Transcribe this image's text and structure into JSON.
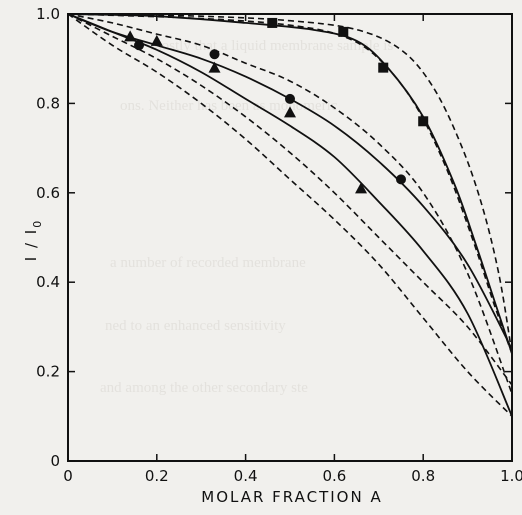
{
  "chart_data": {
    "type": "line",
    "xlabel": "MOLAR FRACTION A",
    "ylabel": "I / I",
    "ylabel_subscript": "0",
    "xlim": [
      0,
      1
    ],
    "ylim": [
      0,
      1
    ],
    "x_ticks": [
      "0",
      "0.2",
      "0.4",
      "0.6",
      "0.8",
      "1.0"
    ],
    "y_ticks": [
      "0",
      "0.2",
      "0.4",
      "0.6",
      "0.8",
      "1.0"
    ],
    "x_tick_values": [
      0,
      0.2,
      0.4,
      0.6,
      0.8,
      1.0
    ],
    "y_tick_values": [
      0,
      0.2,
      0.4,
      0.6,
      0.8,
      1.0
    ],
    "grid": false,
    "legend": "none",
    "series": [
      {
        "marker": "square",
        "points": [
          [
            0.46,
            0.98
          ],
          [
            0.62,
            0.96
          ],
          [
            0.71,
            0.88
          ],
          [
            0.8,
            0.76
          ]
        ],
        "solid_curve": [
          [
            0,
            1
          ],
          [
            0.2,
            0.995
          ],
          [
            0.4,
            0.98
          ],
          [
            0.55,
            0.965
          ],
          [
            0.65,
            0.94
          ],
          [
            0.72,
            0.88
          ],
          [
            0.8,
            0.77
          ],
          [
            0.87,
            0.62
          ],
          [
            0.92,
            0.48
          ],
          [
            0.96,
            0.36
          ],
          [
            1.0,
            0.24
          ]
        ],
        "dashed_curves": [
          [
            [
              0,
              1
            ],
            [
              0.3,
              0.995
            ],
            [
              0.5,
              0.985
            ],
            [
              0.65,
              0.965
            ],
            [
              0.75,
              0.92
            ],
            [
              0.82,
              0.84
            ],
            [
              0.88,
              0.72
            ],
            [
              0.93,
              0.58
            ],
            [
              0.97,
              0.42
            ],
            [
              1.0,
              0.24
            ]
          ],
          [
            [
              0,
              1
            ],
            [
              0.3,
              0.99
            ],
            [
              0.5,
              0.975
            ],
            [
              0.62,
              0.95
            ],
            [
              0.7,
              0.9
            ],
            [
              0.78,
              0.8
            ],
            [
              0.85,
              0.66
            ],
            [
              0.91,
              0.5
            ],
            [
              0.96,
              0.35
            ],
            [
              1.0,
              0.24
            ]
          ]
        ]
      },
      {
        "marker": "circle",
        "points": [
          [
            0.16,
            0.93
          ],
          [
            0.33,
            0.91
          ],
          [
            0.5,
            0.81
          ],
          [
            0.75,
            0.63
          ]
        ],
        "solid_curve": [
          [
            0,
            1
          ],
          [
            0.1,
            0.96
          ],
          [
            0.2,
            0.93
          ],
          [
            0.3,
            0.9
          ],
          [
            0.4,
            0.86
          ],
          [
            0.5,
            0.81
          ],
          [
            0.6,
            0.75
          ],
          [
            0.7,
            0.67
          ],
          [
            0.8,
            0.57
          ],
          [
            0.9,
            0.44
          ],
          [
            1.0,
            0.25
          ]
        ],
        "dashed_curves": [
          [
            [
              0,
              1
            ],
            [
              0.1,
              0.98
            ],
            [
              0.2,
              0.955
            ],
            [
              0.3,
              0.93
            ],
            [
              0.4,
              0.89
            ],
            [
              0.5,
              0.85
            ],
            [
              0.6,
              0.79
            ],
            [
              0.7,
              0.71
            ],
            [
              0.8,
              0.6
            ],
            [
              0.9,
              0.42
            ],
            [
              1.0,
              0.15
            ]
          ],
          [
            [
              0,
              1
            ],
            [
              0.1,
              0.95
            ],
            [
              0.2,
              0.9
            ],
            [
              0.3,
              0.84
            ],
            [
              0.4,
              0.77
            ],
            [
              0.5,
              0.69
            ],
            [
              0.6,
              0.6
            ],
            [
              0.7,
              0.5
            ],
            [
              0.8,
              0.4
            ],
            [
              0.9,
              0.3
            ],
            [
              1.0,
              0.17
            ]
          ]
        ]
      },
      {
        "marker": "triangle",
        "points": [
          [
            0.14,
            0.95
          ],
          [
            0.2,
            0.94
          ],
          [
            0.33,
            0.88
          ],
          [
            0.5,
            0.78
          ],
          [
            0.66,
            0.61
          ]
        ],
        "solid_curve": [
          [
            0,
            1
          ],
          [
            0.1,
            0.96
          ],
          [
            0.2,
            0.92
          ],
          [
            0.3,
            0.87
          ],
          [
            0.4,
            0.81
          ],
          [
            0.5,
            0.75
          ],
          [
            0.6,
            0.68
          ],
          [
            0.7,
            0.58
          ],
          [
            0.8,
            0.47
          ],
          [
            0.9,
            0.33
          ],
          [
            1.0,
            0.1
          ]
        ],
        "dashed_curves": [
          [
            [
              0,
              1
            ],
            [
              0.1,
              0.93
            ],
            [
              0.2,
              0.87
            ],
            [
              0.3,
              0.8
            ],
            [
              0.4,
              0.72
            ],
            [
              0.5,
              0.63
            ],
            [
              0.6,
              0.54
            ],
            [
              0.7,
              0.44
            ],
            [
              0.8,
              0.32
            ],
            [
              0.9,
              0.2
            ],
            [
              1.0,
              0.1
            ]
          ]
        ]
      }
    ]
  }
}
